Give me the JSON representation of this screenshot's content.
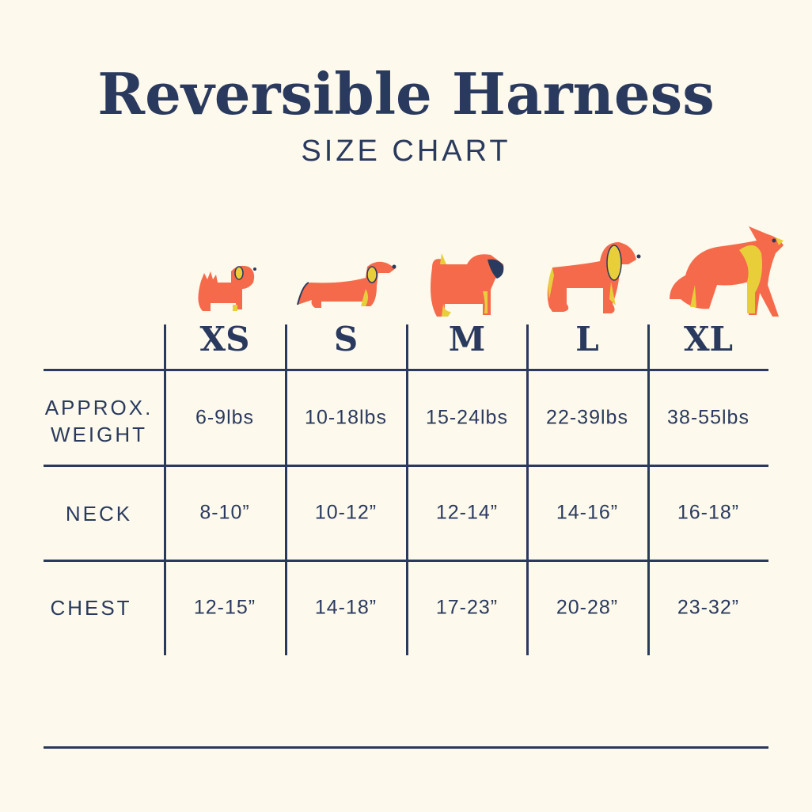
{
  "header": {
    "title": "Reversible Harness",
    "subtitle": "SIZE CHART"
  },
  "colors": {
    "background": "#fdf9ec",
    "navy": "#2a3a5e",
    "dog_orange": "#f56a4a",
    "dog_yellow": "#e8cf3a"
  },
  "sizes": [
    "XS",
    "S",
    "M",
    "L",
    "XL"
  ],
  "dog_icons": [
    "small-fluffy-dog-icon",
    "dachshund-icon",
    "pug-icon",
    "spaniel-icon",
    "shepherd-dog-icon"
  ],
  "rows": [
    {
      "label": "APPROX.\nWEIGHT",
      "values": [
        "6-9lbs",
        "10-18lbs",
        "15-24lbs",
        "22-39lbs",
        "38-55lbs"
      ]
    },
    {
      "label": "NECK",
      "values": [
        "8-10”",
        "10-12”",
        "12-14”",
        "14-16”",
        "16-18”"
      ]
    },
    {
      "label": "CHEST",
      "values": [
        "12-15”",
        "14-18”",
        "17-23”",
        "20-28”",
        "23-32”"
      ]
    }
  ]
}
